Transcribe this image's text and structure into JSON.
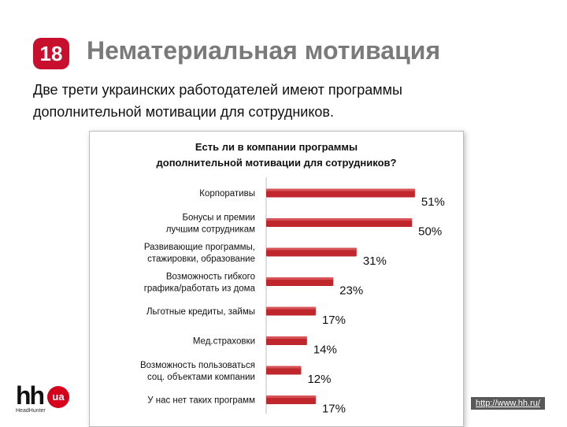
{
  "slide": {
    "number": "18",
    "title": "Нематериальная мотивация",
    "subtitle": "Две трети украинских работодателей имеют программы дополнительной мотивации для сотрудников."
  },
  "chart_data": {
    "type": "bar",
    "orientation": "horizontal",
    "title": "Есть ли в компании программы дополнительной мотивации для сотрудников?",
    "categories": [
      "Корпоративы",
      "Бонусы и премии лучшим сотрудникам",
      "Развивающие программы, стажировки, образование",
      "Возможность гибкого графика/работать из дома",
      "Льготные кредиты, займы",
      "Мед.страховки",
      "Возможность пользоваться соц. объектами компании",
      "У нас нет таких программ"
    ],
    "values": [
      51,
      50,
      31,
      23,
      17,
      14,
      12,
      17
    ],
    "value_labels": [
      "51%",
      "50%",
      "31%",
      "23%",
      "17%",
      "14%",
      "12%",
      "17%"
    ],
    "xlim": [
      0,
      60
    ],
    "bar_color": "#c0272d",
    "grid": false
  },
  "logo": {
    "mark": "hh",
    "badge": "ua",
    "sub": "HeadHunter"
  },
  "source": "http://www.hh.ru/"
}
